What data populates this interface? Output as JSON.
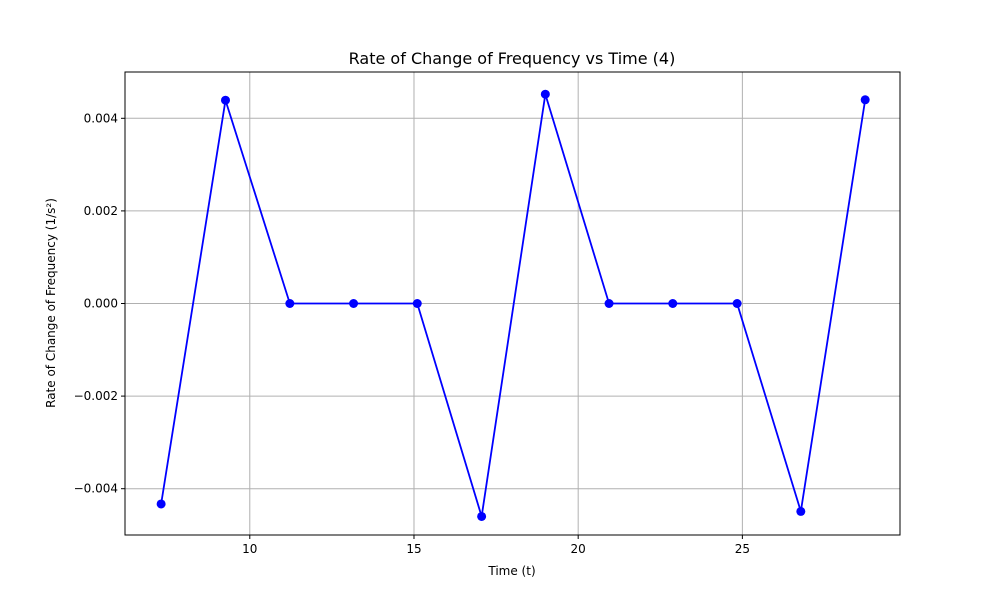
{
  "chart_data": {
    "type": "line",
    "title": "Rate of Change of Frequency vs Time (4)",
    "xlabel": "Time (t)",
    "ylabel": "Rate of Change of Frequency (1/s²)",
    "xlim": [
      6.2,
      29.8
    ],
    "ylim": [
      -0.005,
      0.005
    ],
    "xticks": [
      10,
      15,
      20,
      25
    ],
    "xtick_labels": [
      "10",
      "15",
      "20",
      "25"
    ],
    "yticks": [
      -0.004,
      -0.002,
      0.0,
      0.002,
      0.004
    ],
    "ytick_labels": [
      "−0.004",
      "−0.002",
      "0.000",
      "0.002",
      "0.004"
    ],
    "grid": true,
    "series": [
      {
        "color": "#0000ff",
        "marker": "circle",
        "x": [
          7.3,
          9.26,
          11.22,
          13.16,
          15.1,
          17.06,
          19.0,
          20.94,
          22.88,
          24.84,
          26.78,
          28.74
        ],
        "y": [
          -0.00433,
          0.00439,
          0.0,
          0.0,
          0.0,
          -0.0046,
          0.00452,
          0.0,
          0.0,
          0.0,
          -0.00449,
          0.0044
        ]
      }
    ]
  }
}
